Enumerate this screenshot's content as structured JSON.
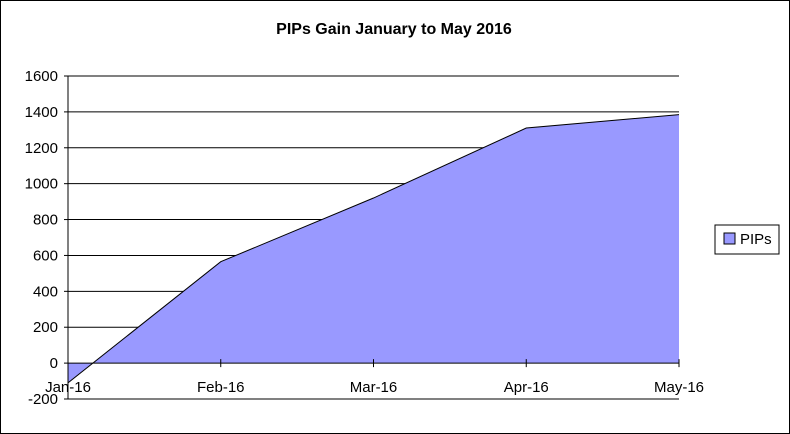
{
  "chart_data": {
    "type": "area",
    "title": "PIPs Gain January to May 2016",
    "xlabel": "",
    "ylabel": "",
    "categories": [
      "Jan-16",
      "Feb-16",
      "Mar-16",
      "Apr-16",
      "May-16"
    ],
    "series": [
      {
        "name": "PIPs",
        "values": [
          -110,
          565,
          920,
          1310,
          1385
        ],
        "color": "#9999ff"
      }
    ],
    "ylim": [
      -200,
      1600
    ],
    "yticks": [
      "-200",
      "0",
      "200",
      "400",
      "600",
      "800",
      "1000",
      "1200",
      "1400",
      "1600"
    ],
    "grid": true,
    "legend": "right"
  }
}
